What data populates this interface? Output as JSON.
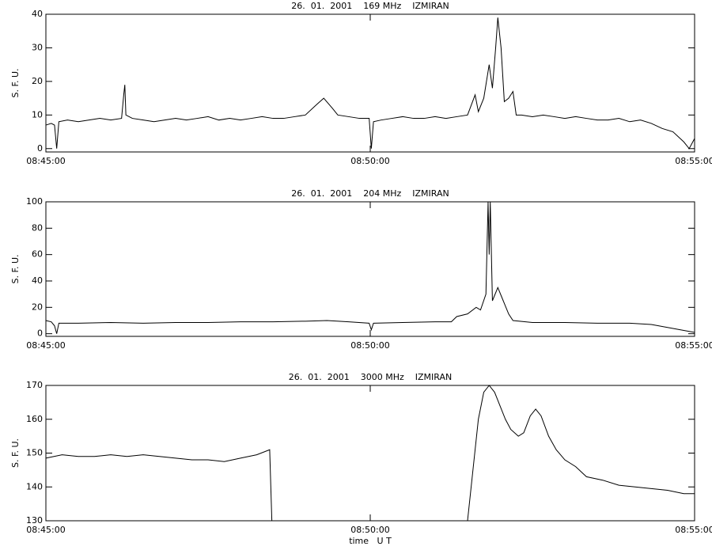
{
  "chart_data": [
    {
      "type": "line",
      "title": "26.  01.  2001    169 MHz    IZMIRAN",
      "ylabel": "S. F. U.",
      "color": "#000000",
      "x": [
        "08:45:00",
        "08:45:05",
        "08:45:08",
        "08:45:10",
        "08:45:12",
        "08:45:20",
        "08:45:30",
        "08:45:40",
        "08:45:50",
        "08:46:00",
        "08:46:10",
        "08:46:12",
        "08:46:13",
        "08:46:14",
        "08:46:20",
        "08:46:30",
        "08:46:40",
        "08:46:50",
        "08:47:00",
        "08:47:10",
        "08:47:20",
        "08:47:30",
        "08:47:40",
        "08:47:50",
        "08:48:00",
        "08:48:10",
        "08:48:20",
        "08:48:30",
        "08:48:40",
        "08:48:50",
        "08:49:00",
        "08:49:10",
        "08:49:17",
        "08:49:25",
        "08:49:30",
        "08:49:40",
        "08:49:50",
        "08:49:59",
        "08:50:01",
        "08:50:03",
        "08:50:10",
        "08:50:20",
        "08:50:30",
        "08:50:40",
        "08:50:50",
        "08:51:00",
        "08:51:10",
        "08:51:20",
        "08:51:30",
        "08:51:37",
        "08:51:40",
        "08:51:45",
        "08:51:50",
        "08:51:53",
        "08:51:56",
        "08:51:58",
        "08:52:01",
        "08:52:04",
        "08:52:08",
        "08:52:12",
        "08:52:15",
        "08:52:20",
        "08:52:30",
        "08:52:40",
        "08:52:50",
        "08:53:00",
        "08:53:10",
        "08:53:20",
        "08:53:30",
        "08:53:40",
        "08:53:50",
        "08:54:00",
        "08:54:10",
        "08:54:20",
        "08:54:30",
        "08:54:40",
        "08:54:50",
        "08:54:55",
        "08:55:00"
      ],
      "values": [
        7,
        7.5,
        7,
        0,
        8,
        8.5,
        8,
        8.5,
        9,
        8.5,
        9,
        16,
        19,
        10,
        9,
        8.5,
        8,
        8.5,
        9,
        8.5,
        9,
        9.5,
        8.5,
        9,
        8.5,
        9,
        9.5,
        9,
        9,
        9.5,
        10,
        13,
        15,
        12,
        10,
        9.5,
        9,
        9,
        0,
        8,
        8.5,
        9,
        9.5,
        9,
        9,
        9.5,
        9,
        9.5,
        10,
        16,
        11,
        15,
        25,
        18,
        30,
        39,
        30,
        14,
        15,
        17,
        10,
        10,
        9.5,
        10,
        9.5,
        9,
        9.5,
        9,
        8.5,
        8.5,
        9,
        8,
        8.5,
        7.5,
        6,
        5,
        2,
        0,
        3
      ],
      "xlim": [
        "08:45:00",
        "08:55:00"
      ],
      "xticks": [
        "08:45:00",
        "08:50:00",
        "08:55:00"
      ],
      "ylim": [
        -1,
        40
      ],
      "yticks": [
        0,
        10,
        20,
        30,
        40
      ]
    },
    {
      "type": "line",
      "title": "26.  01.  2001    204 MHz    IZMIRAN",
      "ylabel": "S. F. U.",
      "color": "#000000",
      "x": [
        "08:45:00",
        "08:45:05",
        "08:45:08",
        "08:45:10",
        "08:45:12",
        "08:45:30",
        "08:46:00",
        "08:46:30",
        "08:47:00",
        "08:47:30",
        "08:48:00",
        "08:48:30",
        "08:49:00",
        "08:49:20",
        "08:49:40",
        "08:49:59",
        "08:50:01",
        "08:50:03",
        "08:50:30",
        "08:51:00",
        "08:51:15",
        "08:51:20",
        "08:51:30",
        "08:51:38",
        "08:51:42",
        "08:51:47",
        "08:51:49",
        "08:51:50",
        "08:51:51",
        "08:51:53",
        "08:51:58",
        "08:52:03",
        "08:52:08",
        "08:52:12",
        "08:52:30",
        "08:53:00",
        "08:53:30",
        "08:54:00",
        "08:54:20",
        "08:54:40",
        "08:55:00"
      ],
      "values": [
        10,
        9,
        6,
        0,
        8,
        8,
        8.5,
        8,
        8.5,
        8.5,
        9,
        9,
        9.5,
        10,
        9,
        8,
        3,
        8,
        8.5,
        9,
        9,
        13,
        15,
        20,
        18,
        30,
        100,
        60,
        100,
        25,
        35,
        25,
        15,
        10,
        8.5,
        8.5,
        8,
        8,
        7,
        4,
        1
      ],
      "xlim": [
        "08:45:00",
        "08:55:00"
      ],
      "xticks": [
        "08:45:00",
        "08:50:00",
        "08:55:00"
      ],
      "ylim": [
        -2,
        100
      ],
      "yticks": [
        0,
        20,
        40,
        60,
        80,
        100
      ]
    },
    {
      "type": "line",
      "title": "26.  01.  2001    3000 MHz    IZMIRAN",
      "ylabel": "S. F. U.",
      "xlabel": "time   U T",
      "color": "#000000",
      "x": [
        "08:45:00",
        "08:45:15",
        "08:45:30",
        "08:45:45",
        "08:46:00",
        "08:46:15",
        "08:46:30",
        "08:46:45",
        "08:47:00",
        "08:47:15",
        "08:47:30",
        "08:47:45",
        "08:48:00",
        "08:48:15",
        "08:48:27",
        "08:48:29",
        null,
        "08:51:30",
        "08:51:35",
        "08:51:40",
        "08:51:45",
        "08:51:50",
        "08:51:55",
        "08:52:00",
        "08:52:05",
        "08:52:10",
        "08:52:17",
        "08:52:22",
        "08:52:28",
        "08:52:33",
        "08:52:38",
        "08:52:45",
        "08:52:52",
        "08:53:00",
        "08:53:10",
        "08:53:20",
        "08:53:35",
        "08:53:50",
        "08:54:05",
        "08:54:20",
        "08:54:35",
        "08:54:50",
        "08:55:00"
      ],
      "values": [
        148.5,
        149.5,
        149,
        149,
        149.5,
        149,
        149.5,
        149,
        148.5,
        148,
        148,
        147.5,
        148.5,
        149.5,
        151,
        130,
        null,
        130,
        145,
        160,
        168,
        170,
        168,
        164,
        160,
        157,
        155,
        156,
        161,
        163,
        161,
        155,
        151,
        148,
        146,
        143,
        142,
        140.5,
        140,
        139.5,
        139,
        138,
        138
      ],
      "xlim": [
        "08:45:00",
        "08:55:00"
      ],
      "xticks": [
        "08:45:00",
        "08:50:00",
        "08:55:00"
      ],
      "ylim": [
        130,
        170
      ],
      "yticks": [
        130,
        140,
        150,
        160,
        170
      ]
    }
  ]
}
